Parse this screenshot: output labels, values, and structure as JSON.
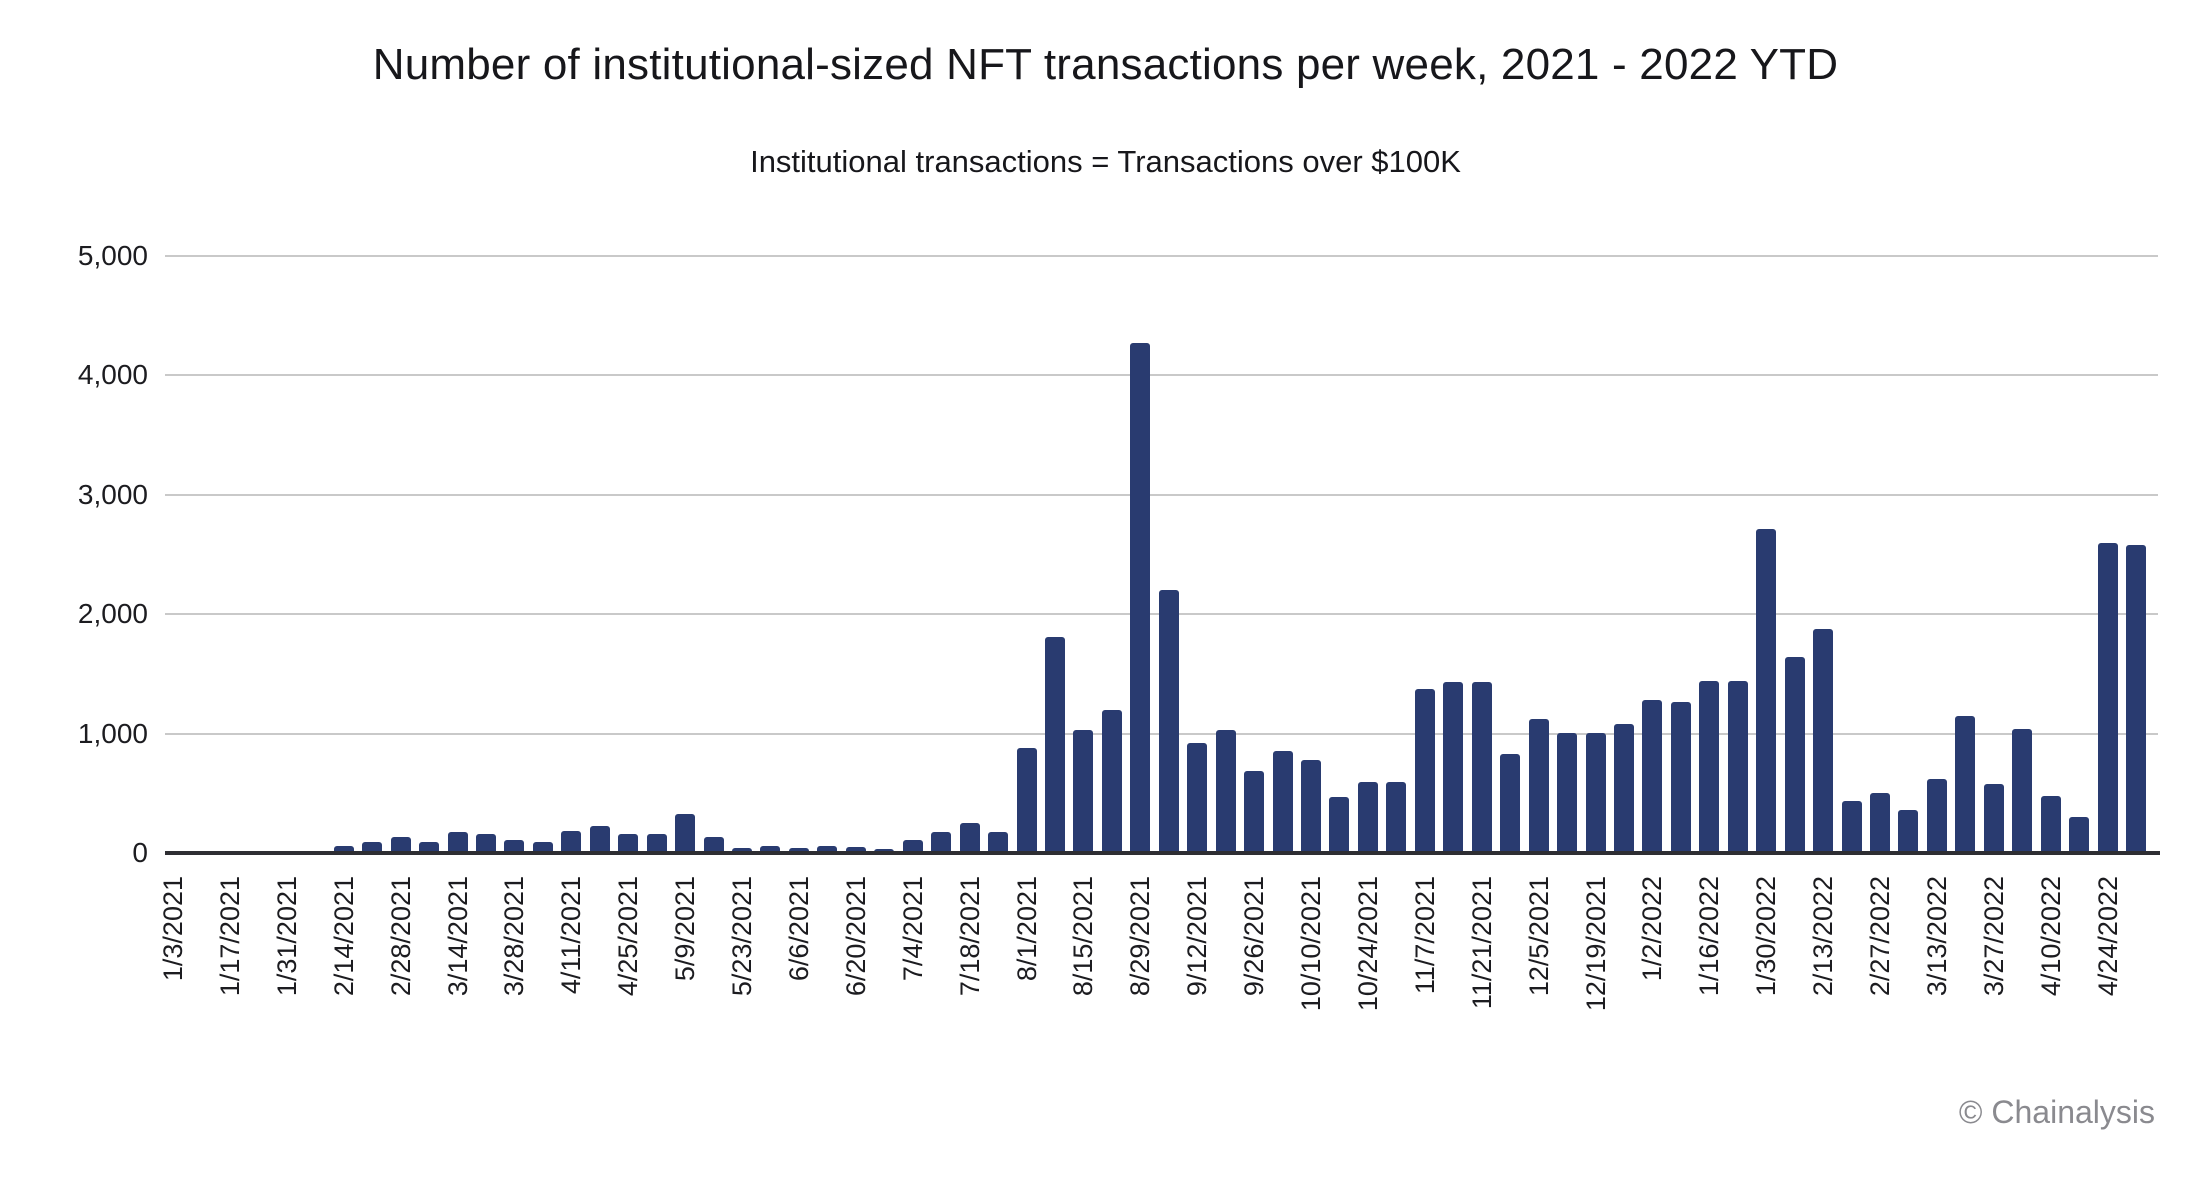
{
  "title": "Number of institutional-sized NFT transactions per week, 2021 - 2022 YTD",
  "subtitle": "Institutional transactions = Transactions over $100K",
  "footer": {
    "credit": "© Chainalysis"
  },
  "colors": {
    "bar": "#293b70",
    "gridline": "#c9c9c9",
    "axis": "#2e2e33",
    "text": "#17171b",
    "footer_text": "#8a8a8f"
  },
  "y_axis": {
    "tick_labels": [
      "5,000",
      "4,000",
      "3,000",
      "2,000",
      "1,000",
      "0"
    ],
    "tick_values": [
      5000,
      4000,
      3000,
      2000,
      1000,
      0
    ]
  },
  "x_axis": {
    "label_every_n_bars": 2,
    "rotation_degrees": 90
  },
  "chart_data": {
    "type": "bar",
    "title": "Number of institutional-sized NFT transactions per week, 2021 - 2022 YTD",
    "subtitle": "Institutional transactions = Transactions over $100K",
    "xlabel": "",
    "ylabel": "",
    "ylim": [
      0,
      5000
    ],
    "grid": true,
    "legend": "none",
    "x": [
      "1/3/2021",
      "1/10/2021",
      "1/17/2021",
      "1/24/2021",
      "1/31/2021",
      "2/7/2021",
      "2/14/2021",
      "2/21/2021",
      "2/28/2021",
      "3/7/2021",
      "3/14/2021",
      "3/21/2021",
      "3/28/2021",
      "4/4/2021",
      "4/11/2021",
      "4/18/2021",
      "4/25/2021",
      "5/2/2021",
      "5/9/2021",
      "5/16/2021",
      "5/23/2021",
      "5/30/2021",
      "6/6/2021",
      "6/13/2021",
      "6/20/2021",
      "6/27/2021",
      "7/4/2021",
      "7/11/2021",
      "7/18/2021",
      "7/25/2021",
      "8/1/2021",
      "8/8/2021",
      "8/15/2021",
      "8/22/2021",
      "8/29/2021",
      "9/5/2021",
      "9/12/2021",
      "9/19/2021",
      "9/26/2021",
      "10/3/2021",
      "10/10/2021",
      "10/17/2021",
      "10/24/2021",
      "10/31/2021",
      "11/7/2021",
      "11/14/2021",
      "11/21/2021",
      "11/28/2021",
      "12/5/2021",
      "12/12/2021",
      "12/19/2021",
      "12/26/2021",
      "1/2/2022",
      "1/9/2022",
      "1/16/2022",
      "1/23/2022",
      "1/30/2022",
      "2/6/2022",
      "2/13/2022",
      "2/20/2022",
      "2/27/2022",
      "3/6/2022",
      "3/13/2022",
      "3/20/2022",
      "3/27/2022",
      "4/3/2022",
      "4/10/2022",
      "4/17/2022",
      "4/24/2022",
      "5/1/2022"
    ],
    "values": [
      0,
      0,
      0,
      3,
      6,
      15,
      60,
      90,
      130,
      90,
      180,
      160,
      110,
      90,
      185,
      230,
      160,
      160,
      330,
      130,
      45,
      60,
      45,
      60,
      50,
      35,
      105,
      180,
      255,
      180,
      880,
      1810,
      1030,
      1200,
      4270,
      2200,
      920,
      1030,
      690,
      855,
      775,
      470,
      595,
      595,
      1375,
      1430,
      1430,
      830,
      1125,
      1005,
      1005,
      1080,
      1280,
      1265,
      1440,
      1440,
      2715,
      1645,
      1875,
      435,
      500,
      360,
      620,
      1150,
      575,
      1035,
      480,
      300,
      2600,
      2580
    ],
    "x_tick_labels": [
      "1/3/2021",
      "1/17/2021",
      "1/31/2021",
      "2/14/2021",
      "2/28/2021",
      "3/14/2021",
      "3/28/2021",
      "4/11/2021",
      "4/25/2021",
      "5/9/2021",
      "5/23/2021",
      "6/6/2021",
      "6/20/2021",
      "7/4/2021",
      "7/18/2021",
      "8/1/2021",
      "8/15/2021",
      "8/29/2021",
      "9/12/2021",
      "9/26/2021",
      "10/10/2021",
      "10/24/2021",
      "11/7/2021",
      "11/21/2021",
      "12/5/2021",
      "12/19/2021",
      "1/2/2022",
      "1/16/2022",
      "1/30/2022",
      "2/13/2022",
      "2/27/2022",
      "3/13/2022",
      "3/27/2022",
      "4/10/2022",
      "4/24/2022"
    ]
  }
}
